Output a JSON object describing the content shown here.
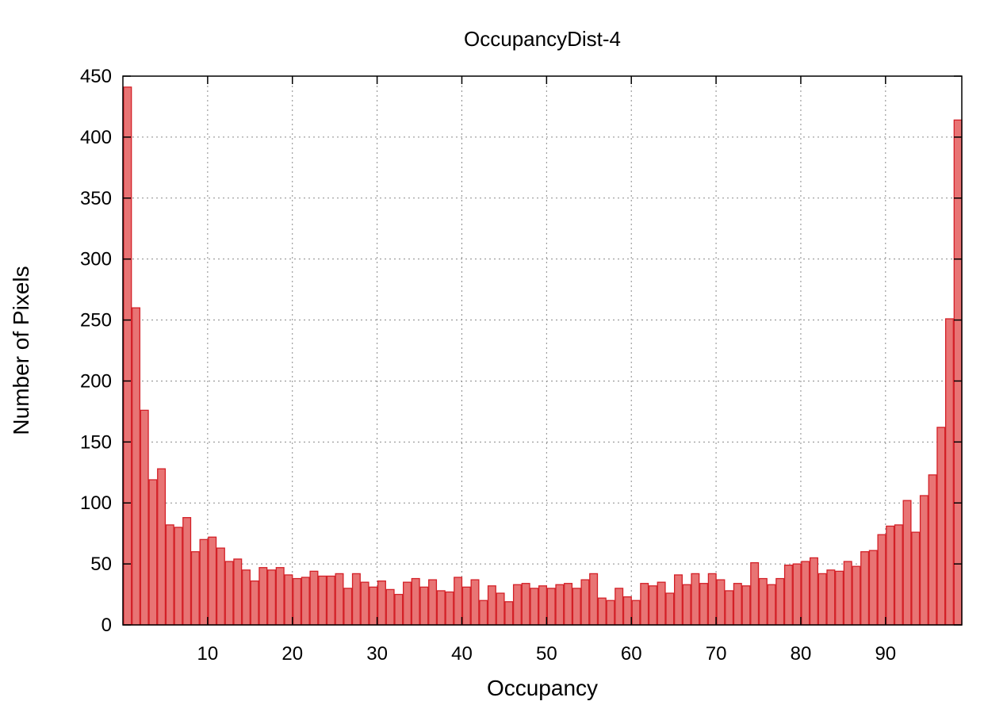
{
  "chart_data": {
    "type": "bar",
    "title": "OccupancyDist-4",
    "xlabel": "Occupancy",
    "ylabel": "Number of Pixels",
    "xlim": [
      0,
      99
    ],
    "ylim": [
      0,
      450
    ],
    "xticks": [
      10,
      20,
      30,
      40,
      50,
      60,
      70,
      80,
      90
    ],
    "yticks": [
      0,
      50,
      100,
      150,
      200,
      250,
      300,
      350,
      400,
      450
    ],
    "grid": true,
    "legend": "none",
    "bar_fill": "#e87474",
    "bar_edge": "#d32027",
    "x": [
      0,
      1,
      2,
      3,
      4,
      5,
      6,
      7,
      8,
      9,
      10,
      11,
      12,
      13,
      14,
      15,
      16,
      17,
      18,
      19,
      20,
      21,
      22,
      23,
      24,
      25,
      26,
      27,
      28,
      29,
      30,
      31,
      32,
      33,
      34,
      35,
      36,
      37,
      38,
      39,
      40,
      41,
      42,
      43,
      44,
      45,
      46,
      47,
      48,
      49,
      50,
      51,
      52,
      53,
      54,
      55,
      56,
      57,
      58,
      59,
      60,
      61,
      62,
      63,
      64,
      65,
      66,
      67,
      68,
      69,
      70,
      71,
      72,
      73,
      74,
      75,
      76,
      77,
      78,
      79,
      80,
      81,
      82,
      83,
      84,
      85,
      86,
      87,
      88,
      89,
      90,
      91,
      92,
      93,
      94,
      95,
      96,
      97,
      98
    ],
    "values": [
      441,
      260,
      176,
      119,
      128,
      82,
      80,
      88,
      60,
      70,
      72,
      63,
      52,
      54,
      45,
      36,
      47,
      45,
      47,
      41,
      38,
      39,
      44,
      40,
      40,
      42,
      30,
      42,
      35,
      31,
      36,
      29,
      25,
      35,
      38,
      31,
      37,
      28,
      27,
      39,
      31,
      37,
      20,
      32,
      26,
      19,
      33,
      34,
      30,
      32,
      30,
      33,
      34,
      30,
      37,
      42,
      22,
      20,
      30,
      23,
      20,
      34,
      32,
      35,
      26,
      41,
      33,
      42,
      34,
      42,
      37,
      28,
      34,
      32,
      51,
      38,
      33,
      38,
      49,
      50,
      52,
      55,
      42,
      45,
      44,
      52,
      48,
      60,
      61,
      74,
      81,
      82,
      102,
      76,
      106,
      123,
      162,
      251,
      414
    ]
  }
}
